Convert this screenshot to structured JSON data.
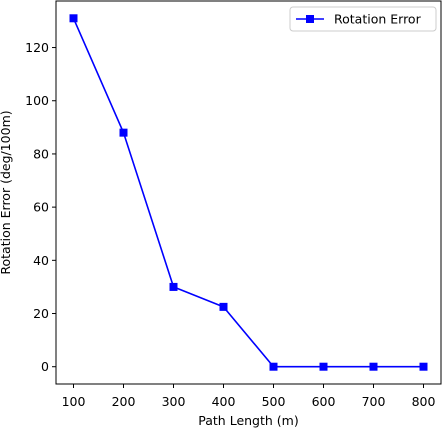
{
  "chart_data": {
    "type": "line",
    "xlabel": "Path Length (m)",
    "ylabel": "Rotation Error (deg/100m)",
    "x": [
      100,
      200,
      300,
      400,
      500,
      600,
      700,
      800
    ],
    "series": [
      {
        "name": "Rotation Error",
        "values": [
          131,
          88,
          30,
          22.5,
          0,
          0,
          0,
          0
        ],
        "color": "#0000ff",
        "marker": "square"
      }
    ],
    "xticks": [
      "100",
      "200",
      "300",
      "400",
      "500",
      "600",
      "700",
      "800"
    ],
    "yticks": [
      "0",
      "20",
      "40",
      "60",
      "80",
      "100",
      "120"
    ],
    "xlim": [
      65,
      835
    ],
    "ylim": [
      -6.5,
      137.5
    ],
    "grid": false,
    "legend_position": "top-right"
  }
}
